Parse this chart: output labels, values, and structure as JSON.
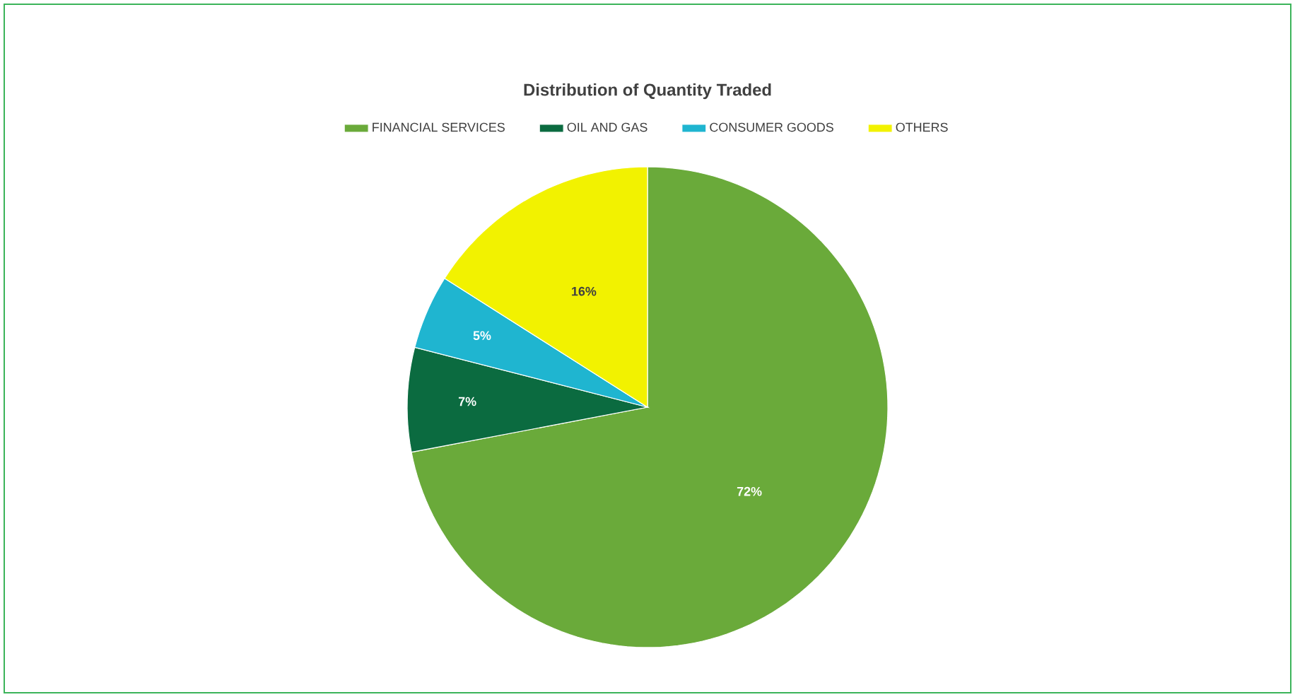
{
  "chart_data": {
    "type": "pie",
    "title": "Distribution of Quantity Traded",
    "categories": [
      "FINANCIAL SERVICES",
      "OIL AND GAS",
      "CONSUMER GOODS",
      "OTHERS"
    ],
    "values": [
      72,
      7,
      5,
      16
    ],
    "value_labels": [
      "72%",
      "7%",
      "5%",
      "16%"
    ],
    "colors": [
      "#6aaa3a",
      "#0b6b40",
      "#1fb5d0",
      "#f2f200"
    ],
    "legend": "top"
  }
}
